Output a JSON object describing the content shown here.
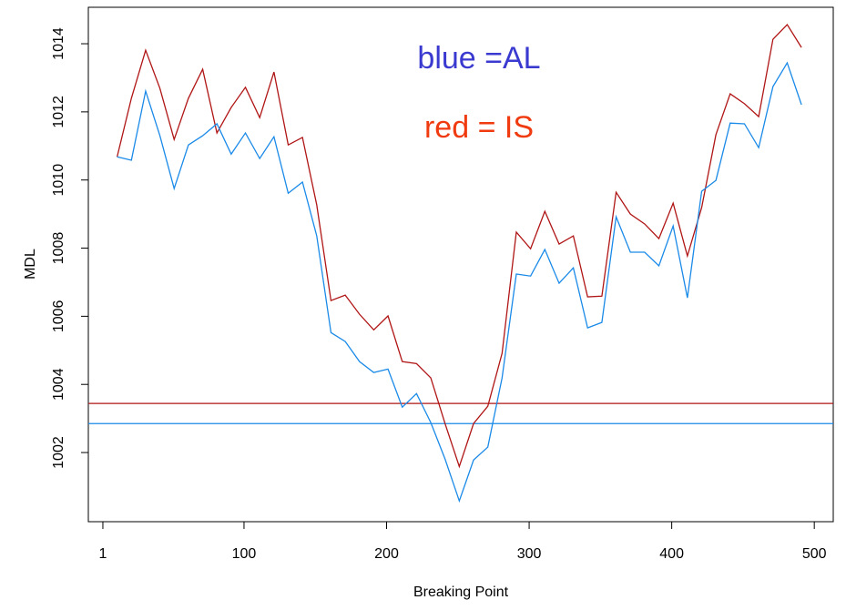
{
  "chart_data": {
    "type": "line",
    "xlabel": "Breaking Point",
    "ylabel": "MDL",
    "annotations": [
      {
        "text": "blue =AL",
        "color": "#3a3ad0"
      },
      {
        "text": "red = IS",
        "color": "#f03a10"
      }
    ],
    "x": [
      11,
      21,
      31,
      41,
      51,
      61,
      71,
      81,
      91,
      101,
      111,
      121,
      131,
      141,
      151,
      161,
      171,
      181,
      191,
      201,
      211,
      221,
      231,
      241,
      251,
      261,
      271,
      281,
      291,
      301,
      311,
      321,
      331,
      341,
      351,
      361,
      371,
      381,
      391,
      401,
      411,
      421,
      431,
      441,
      451,
      461,
      471,
      481,
      491
    ],
    "series": [
      {
        "color": "#b01515",
        "values": [
          1010.68,
          1012.4,
          1013.81,
          1012.69,
          1011.19,
          1012.4,
          1013.25,
          1011.38,
          1012.13,
          1012.72,
          1011.83,
          1013.17,
          1011.03,
          1011.25,
          1009.27,
          1006.46,
          1006.62,
          1006.06,
          1005.6,
          1006.01,
          1004.67,
          1004.61,
          1004.19,
          1002.85,
          1001.59,
          1002.85,
          1003.36,
          1004.91,
          1008.47,
          1007.98,
          1009.08,
          1008.12,
          1008.36,
          1006.57,
          1006.59,
          1009.64,
          1009.0,
          1008.71,
          1008.28,
          1009.32,
          1007.77,
          1009.19,
          1011.33,
          1012.53,
          1012.24,
          1011.86,
          1014.13,
          1014.56,
          1013.89
        ]
      },
      {
        "color": "#1a8ae8",
        "values": [
          1010.68,
          1010.58,
          1012.61,
          1011.3,
          1009.75,
          1011.03,
          1011.3,
          1011.65,
          1010.76,
          1011.38,
          1010.63,
          1011.27,
          1009.61,
          1009.94,
          1008.36,
          1005.52,
          1005.26,
          1004.67,
          1004.35,
          1004.45,
          1003.33,
          1003.73,
          1002.88,
          1001.81,
          1000.58,
          1001.78,
          1002.16,
          1004.19,
          1007.24,
          1007.18,
          1007.96,
          1006.97,
          1007.42,
          1005.66,
          1005.82,
          1008.92,
          1007.88,
          1007.88,
          1007.48,
          1008.65,
          1006.54,
          1009.67,
          1009.99,
          1011.67,
          1011.65,
          1010.95,
          1012.74,
          1013.44,
          1012.21
        ]
      }
    ],
    "reference_lines": [
      {
        "value": 1003.44,
        "color": "#b01515"
      },
      {
        "value": 1002.85,
        "color": "#1a8ae8"
      }
    ],
    "xlim": [
      -9.2,
      513.3
    ],
    "xticks": [
      1,
      100,
      200,
      300,
      400,
      500
    ],
    "ylim": [
      999.97,
      1015.07
    ],
    "yticks": [
      1002,
      1004,
      1006,
      1008,
      1010,
      1012,
      1014
    ]
  }
}
